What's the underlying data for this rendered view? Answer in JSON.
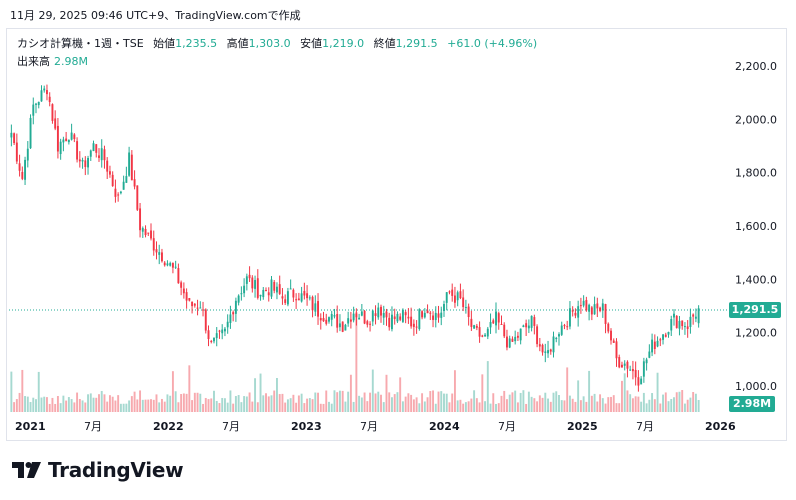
{
  "header": {
    "date_text": "11月 29, 2025 09:46 UTC+9、TradingView.comで作成"
  },
  "legend": {
    "symbol": "カシオ計算機・1週・TSE",
    "open_label": "始値",
    "open_value": "1,235.5",
    "high_label": "高値",
    "high_value": "1,303.0",
    "low_label": "安値",
    "low_value": "1,219.0",
    "close_label": "終値",
    "close_value": "1,291.5",
    "change": "+61.0 (+4.96%)"
  },
  "volume_legend": {
    "label": "出来高",
    "value": "2.98M"
  },
  "badges": {
    "last_price": "1,291.5",
    "last_volume": "2.98M"
  },
  "brand": {
    "name": "TradingView"
  },
  "colors": {
    "up": "#22ab94",
    "down": "#f23645",
    "up_volume": "#a6d9d0",
    "down_volume": "#f7a9ae"
  },
  "chart_data": {
    "type": "candlestick",
    "title": "カシオ計算機・1週・TSE",
    "y_axis": {
      "ticks": [
        "2,200.0",
        "2,000.0",
        "1,800.0",
        "1,600.0",
        "1,400.0",
        "1,200.0",
        "1,000.0"
      ],
      "range": [
        1000,
        2200
      ],
      "position": "right"
    },
    "x_axis": {
      "ticks": [
        "2021",
        "7月",
        "2022",
        "7月",
        "2023",
        "7月",
        "2024",
        "7月",
        "2025",
        "7月",
        "2026"
      ]
    },
    "last_close": 1291.5,
    "price_path": [
      {
        "date": "2021-01",
        "close": 1950
      },
      {
        "date": "2021-02",
        "close": 1780
      },
      {
        "date": "2021-03",
        "close": 2050
      },
      {
        "date": "2021-04",
        "close": 2120
      },
      {
        "date": "2021-05",
        "close": 1900
      },
      {
        "date": "2021-06",
        "close": 1950
      },
      {
        "date": "2021-07",
        "close": 1820
      },
      {
        "date": "2021-08",
        "close": 1900
      },
      {
        "date": "2021-09",
        "close": 1850
      },
      {
        "date": "2021-10",
        "close": 1700
      },
      {
        "date": "2021-11",
        "close": 1850
      },
      {
        "date": "2021-12",
        "close": 1600
      },
      {
        "date": "2022-01",
        "close": 1530
      },
      {
        "date": "2022-02",
        "close": 1480
      },
      {
        "date": "2022-03",
        "close": 1420
      },
      {
        "date": "2022-04",
        "close": 1300
      },
      {
        "date": "2022-05",
        "close": 1310
      },
      {
        "date": "2022-06",
        "close": 1150
      },
      {
        "date": "2022-07",
        "close": 1200
      },
      {
        "date": "2022-08",
        "close": 1330
      },
      {
        "date": "2022-09",
        "close": 1400
      },
      {
        "date": "2022-10",
        "close": 1350
      },
      {
        "date": "2022-11",
        "close": 1370
      },
      {
        "date": "2022-12",
        "close": 1330
      },
      {
        "date": "2023-01",
        "close": 1350
      },
      {
        "date": "2023-02",
        "close": 1320
      },
      {
        "date": "2023-03",
        "close": 1280
      },
      {
        "date": "2023-04",
        "close": 1250
      },
      {
        "date": "2023-05",
        "close": 1230
      },
      {
        "date": "2023-06",
        "close": 1280
      },
      {
        "date": "2023-07",
        "close": 1250
      },
      {
        "date": "2023-08",
        "close": 1300
      },
      {
        "date": "2023-09",
        "close": 1250
      },
      {
        "date": "2023-10",
        "close": 1260
      },
      {
        "date": "2023-11",
        "close": 1230
      },
      {
        "date": "2023-12",
        "close": 1300
      },
      {
        "date": "2024-01",
        "close": 1260
      },
      {
        "date": "2024-02",
        "close": 1350
      },
      {
        "date": "2024-03",
        "close": 1320
      },
      {
        "date": "2024-04",
        "close": 1200
      },
      {
        "date": "2024-05",
        "close": 1180
      },
      {
        "date": "2024-06",
        "close": 1250
      },
      {
        "date": "2024-07",
        "close": 1150
      },
      {
        "date": "2024-08",
        "close": 1200
      },
      {
        "date": "2024-09",
        "close": 1240
      },
      {
        "date": "2024-10",
        "close": 1100
      },
      {
        "date": "2024-11",
        "close": 1200
      },
      {
        "date": "2024-12",
        "close": 1250
      },
      {
        "date": "2025-01",
        "close": 1320
      },
      {
        "date": "2025-02",
        "close": 1280
      },
      {
        "date": "2025-03",
        "close": 1290
      },
      {
        "date": "2025-04",
        "close": 1100
      },
      {
        "date": "2025-05",
        "close": 1080
      },
      {
        "date": "2025-06",
        "close": 1030
      },
      {
        "date": "2025-07",
        "close": 1150
      },
      {
        "date": "2025-08",
        "close": 1200
      },
      {
        "date": "2025-09",
        "close": 1250
      },
      {
        "date": "2025-10",
        "close": 1230
      },
      {
        "date": "2025-11",
        "close": 1291.5
      }
    ],
    "legend_position": "top-left",
    "grid": false
  }
}
